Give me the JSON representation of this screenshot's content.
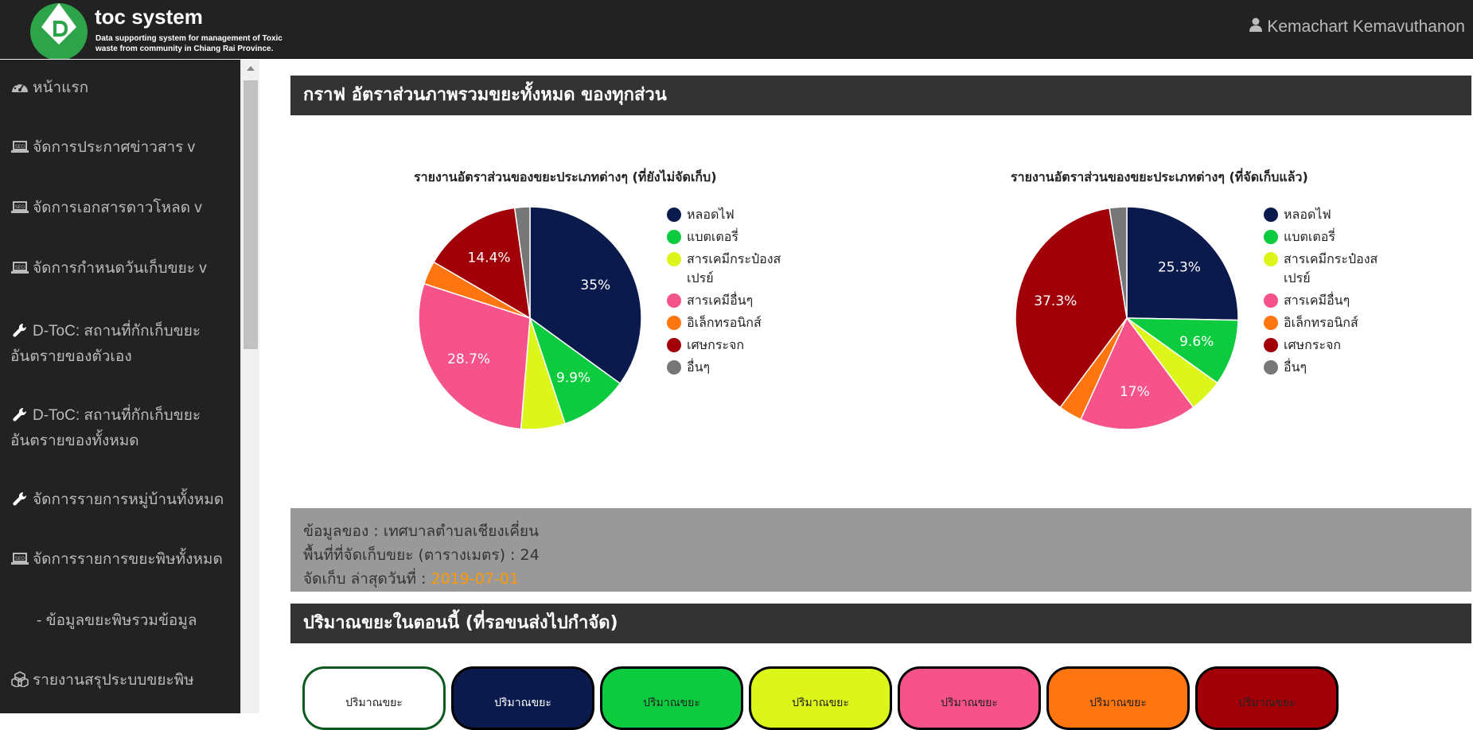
{
  "header": {
    "title": "toc system",
    "subtitle_line1": "Data supporting system for management of Toxic",
    "subtitle_line2": "waste from community in Chiang Rai Province.",
    "user_name": "Kemachart Kemavuthanon"
  },
  "sidebar": {
    "items": [
      {
        "label": "หน้าแรก",
        "icon": "dashboard-icon"
      },
      {
        "label": "จัดการประกาศข่าวสาร v",
        "icon": "seo-laptop-icon"
      },
      {
        "label": "จัดการเอกสารดาวโหลด v",
        "icon": "seo-laptop-icon"
      },
      {
        "label": "จัดการกำหนดวันเก็บขยะ v",
        "icon": "seo-laptop-icon"
      },
      {
        "label_line1": "D-ToC: สถานที่กักเก็บขยะ",
        "label_line2": "อันตรายของตัวเอง",
        "icon": "wrench-icon"
      },
      {
        "label_line1": "D-ToC: สถานที่กักเก็บขยะ",
        "label_line2": "อันตรายของทั้งหมด",
        "icon": "wrench-icon"
      },
      {
        "label": "จัดการรายการหมู่บ้านทั้งหมด",
        "icon": "wrench-icon"
      },
      {
        "label": "จัดการรายการขยะพิษทั้งหมด",
        "icon": "seo-laptop-icon"
      },
      {
        "label": "- ข้อมูลขยะพิษรวมข้อมูล"
      },
      {
        "label": "รายงานสรุประบบขยะพิษ",
        "icon": "cubes-icon"
      }
    ]
  },
  "main": {
    "section1_title": "กราฟ อัตราส่วนภาพรวมขยะทั้งหมด ของทุกส่วน",
    "section2_title": "ปริมาณขยะในตอนนี้ (ที่รอขนส่งไปกำจัด)",
    "info": {
      "owner_label": "ข้อมูลของ : ",
      "owner_value": "เทศบาลตำบลเชียงเคี่ยน",
      "area_label": "พื้นที่ที่จัดเก็บขยะ (ตารางเมตร) : ",
      "area_value": "24",
      "date_label": "จัดเก็บ ล่าสุดวันที่ : ",
      "date_value": "2019-07-01"
    },
    "pill_label": "ปริมาณขยะ",
    "pill_colors": [
      "#ffffff",
      "#0b1a4c",
      "#0ccb3f",
      "#dcf51b",
      "#f7538b",
      "#ff7510",
      "#a10009"
    ]
  },
  "chart_data": [
    {
      "type": "pie",
      "title": "รายงานอัตราส่วนของขยะประเภทต่างๆ (ที่ยังไม่จัดเก็บ)",
      "categories": [
        "หลอดไฟ",
        "แบตเตอรี่",
        "สารเคมีกระป๋องสเปรย์",
        "สารเคมีอื่นๆ",
        "อิเล็กทรอนิกส์",
        "เศษกระจก",
        "อื่นๆ"
      ],
      "values": [
        35,
        9.9,
        6.4,
        28.7,
        3.4,
        14.4,
        2.2
      ],
      "labels": [
        "35%",
        "9.9%",
        "",
        "28.7%",
        "",
        "14.4%",
        ""
      ],
      "colors": [
        "#0b1a4c",
        "#0ccb3f",
        "#dcf51b",
        "#f7538b",
        "#ff7510",
        "#a10009",
        "#777777"
      ],
      "legend": "right"
    },
    {
      "type": "pie",
      "title": "รายงานอัตราส่วนของขยะประเภทต่างๆ (ที่จัดเก็บแล้ว)",
      "categories": [
        "หลอดไฟ",
        "แบตเตอรี่",
        "สารเคมีกระป๋องสเปรย์",
        "สารเคมีอื่นๆ",
        "อิเล็กทรอนิกส์",
        "เศษกระจก",
        "อื่นๆ"
      ],
      "values": [
        25.3,
        9.6,
        4.9,
        17,
        3.4,
        37.3,
        2.5
      ],
      "labels": [
        "25.3%",
        "9.6%",
        "",
        "17%",
        "",
        "37.3%",
        ""
      ],
      "colors": [
        "#0b1a4c",
        "#0ccb3f",
        "#dcf51b",
        "#f7538b",
        "#ff7510",
        "#a10009",
        "#777777"
      ],
      "legend": "right"
    }
  ]
}
